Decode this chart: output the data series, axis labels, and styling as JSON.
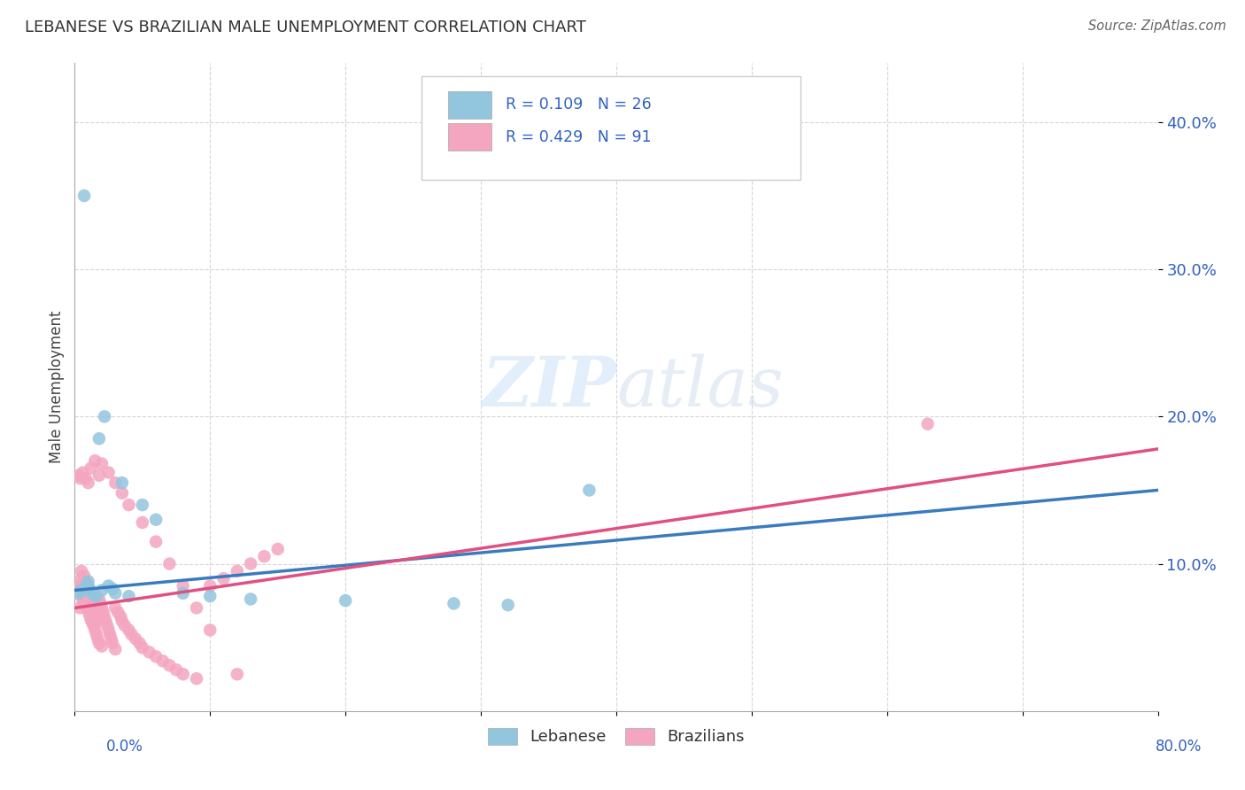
{
  "title": "LEBANESE VS BRAZILIAN MALE UNEMPLOYMENT CORRELATION CHART",
  "source": "Source: ZipAtlas.com",
  "ylabel": "Male Unemployment",
  "xlim": [
    0.0,
    0.8
  ],
  "ylim": [
    0.0,
    0.44
  ],
  "yticks": [
    0.1,
    0.2,
    0.3,
    0.4
  ],
  "ytick_labels": [
    "10.0%",
    "20.0%",
    "30.0%",
    "40.0%"
  ],
  "watermark_zip": "ZIP",
  "watermark_atlas": "atlas",
  "lebanese_color": "#92c5de",
  "brazilian_color": "#f4a6c0",
  "lebanese_line_color": "#3a7bbf",
  "brazilian_line_color": "#e05080",
  "legend_text_color": "#3060c0",
  "leb_x": [
    0.003,
    0.005,
    0.007,
    0.009,
    0.01,
    0.011,
    0.012,
    0.014,
    0.016,
    0.018,
    0.02,
    0.022,
    0.025,
    0.028,
    0.03,
    0.035,
    0.04,
    0.05,
    0.06,
    0.08,
    0.1,
    0.13,
    0.2,
    0.28,
    0.32,
    0.38
  ],
  "leb_y": [
    0.08,
    0.082,
    0.35,
    0.085,
    0.088,
    0.083,
    0.081,
    0.079,
    0.078,
    0.185,
    0.082,
    0.2,
    0.085,
    0.083,
    0.08,
    0.155,
    0.078,
    0.14,
    0.13,
    0.08,
    0.078,
    0.076,
    0.075,
    0.073,
    0.072,
    0.15
  ],
  "bra_x": [
    0.002,
    0.003,
    0.004,
    0.005,
    0.005,
    0.006,
    0.006,
    0.007,
    0.007,
    0.008,
    0.008,
    0.009,
    0.009,
    0.01,
    0.01,
    0.011,
    0.011,
    0.012,
    0.012,
    0.013,
    0.013,
    0.014,
    0.014,
    0.015,
    0.015,
    0.016,
    0.016,
    0.017,
    0.017,
    0.018,
    0.018,
    0.019,
    0.02,
    0.02,
    0.021,
    0.022,
    0.023,
    0.024,
    0.025,
    0.026,
    0.027,
    0.028,
    0.03,
    0.03,
    0.032,
    0.034,
    0.035,
    0.037,
    0.04,
    0.042,
    0.045,
    0.048,
    0.05,
    0.055,
    0.06,
    0.065,
    0.07,
    0.075,
    0.08,
    0.09,
    0.1,
    0.11,
    0.12,
    0.13,
    0.14,
    0.15,
    0.003,
    0.004,
    0.006,
    0.008,
    0.01,
    0.012,
    0.015,
    0.018,
    0.02,
    0.025,
    0.03,
    0.035,
    0.04,
    0.05,
    0.06,
    0.07,
    0.08,
    0.09,
    0.1,
    0.12,
    0.63,
    0.004,
    0.006,
    0.008,
    0.01
  ],
  "bra_y": [
    0.08,
    0.083,
    0.085,
    0.09,
    0.095,
    0.086,
    0.078,
    0.092,
    0.075,
    0.088,
    0.072,
    0.085,
    0.07,
    0.082,
    0.068,
    0.079,
    0.065,
    0.076,
    0.062,
    0.073,
    0.06,
    0.07,
    0.058,
    0.067,
    0.055,
    0.064,
    0.052,
    0.061,
    0.049,
    0.076,
    0.046,
    0.073,
    0.07,
    0.044,
    0.067,
    0.064,
    0.061,
    0.058,
    0.055,
    0.052,
    0.049,
    0.046,
    0.07,
    0.042,
    0.067,
    0.064,
    0.061,
    0.058,
    0.055,
    0.052,
    0.049,
    0.046,
    0.043,
    0.04,
    0.037,
    0.034,
    0.031,
    0.028,
    0.025,
    0.022,
    0.085,
    0.09,
    0.095,
    0.1,
    0.105,
    0.11,
    0.16,
    0.158,
    0.162,
    0.158,
    0.155,
    0.165,
    0.17,
    0.16,
    0.168,
    0.162,
    0.155,
    0.148,
    0.14,
    0.128,
    0.115,
    0.1,
    0.085,
    0.07,
    0.055,
    0.025,
    0.195,
    0.07,
    0.075,
    0.08,
    0.085
  ]
}
